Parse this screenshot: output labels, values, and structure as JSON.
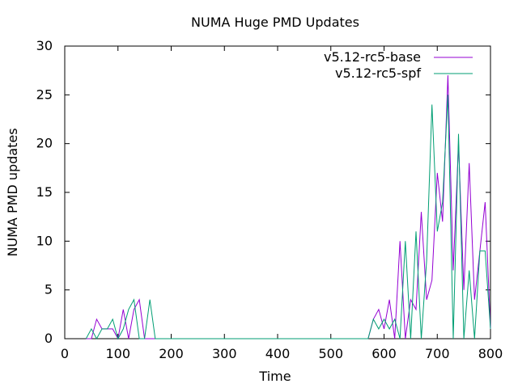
{
  "chart_data": {
    "type": "line",
    "title": "NUMA Huge PMD Updates",
    "xlabel": "Time",
    "ylabel": "NUMA PMD updates",
    "xlim": [
      0,
      800
    ],
    "ylim": [
      0,
      30
    ],
    "xticks": [
      0,
      100,
      200,
      300,
      400,
      500,
      600,
      700,
      800
    ],
    "yticks": [
      0,
      5,
      10,
      15,
      20,
      25,
      30
    ],
    "grid": false,
    "legend_position": "top-right",
    "series": [
      {
        "name": "v5.12-rc5-base",
        "color": "#9400d3",
        "x": [
          40,
          50,
          60,
          70,
          80,
          90,
          100,
          110,
          120,
          130,
          140,
          150,
          160,
          170,
          180,
          190,
          570,
          580,
          590,
          600,
          610,
          620,
          630,
          640,
          650,
          660,
          670,
          680,
          690,
          700,
          710,
          720,
          730,
          740,
          750,
          760,
          770,
          780,
          790,
          800
        ],
        "y": [
          0,
          0,
          2,
          1,
          1,
          1,
          0,
          3,
          0,
          3,
          4,
          0,
          0,
          0,
          0,
          0,
          0,
          2,
          3,
          1,
          4,
          0,
          10,
          0,
          4,
          3,
          13,
          4,
          6,
          17,
          12,
          27,
          7,
          20,
          5,
          18,
          4,
          9,
          14,
          1
        ]
      },
      {
        "name": "v5.12-rc5-spf",
        "color": "#009e73",
        "x": [
          40,
          50,
          60,
          70,
          80,
          90,
          100,
          110,
          120,
          130,
          140,
          150,
          160,
          170,
          180,
          190,
          570,
          580,
          590,
          600,
          610,
          620,
          630,
          640,
          650,
          660,
          670,
          680,
          690,
          700,
          710,
          720,
          730,
          740,
          750,
          760,
          770,
          780,
          790,
          800
        ],
        "y": [
          0,
          1,
          0,
          1,
          1,
          2,
          0,
          1,
          3,
          4,
          0,
          0,
          4,
          0,
          0,
          0,
          0,
          2,
          1,
          2,
          1,
          2,
          0,
          10,
          0,
          11,
          0,
          8,
          24,
          11,
          14,
          25,
          0,
          21,
          0,
          7,
          0,
          9,
          9,
          1
        ]
      }
    ]
  }
}
